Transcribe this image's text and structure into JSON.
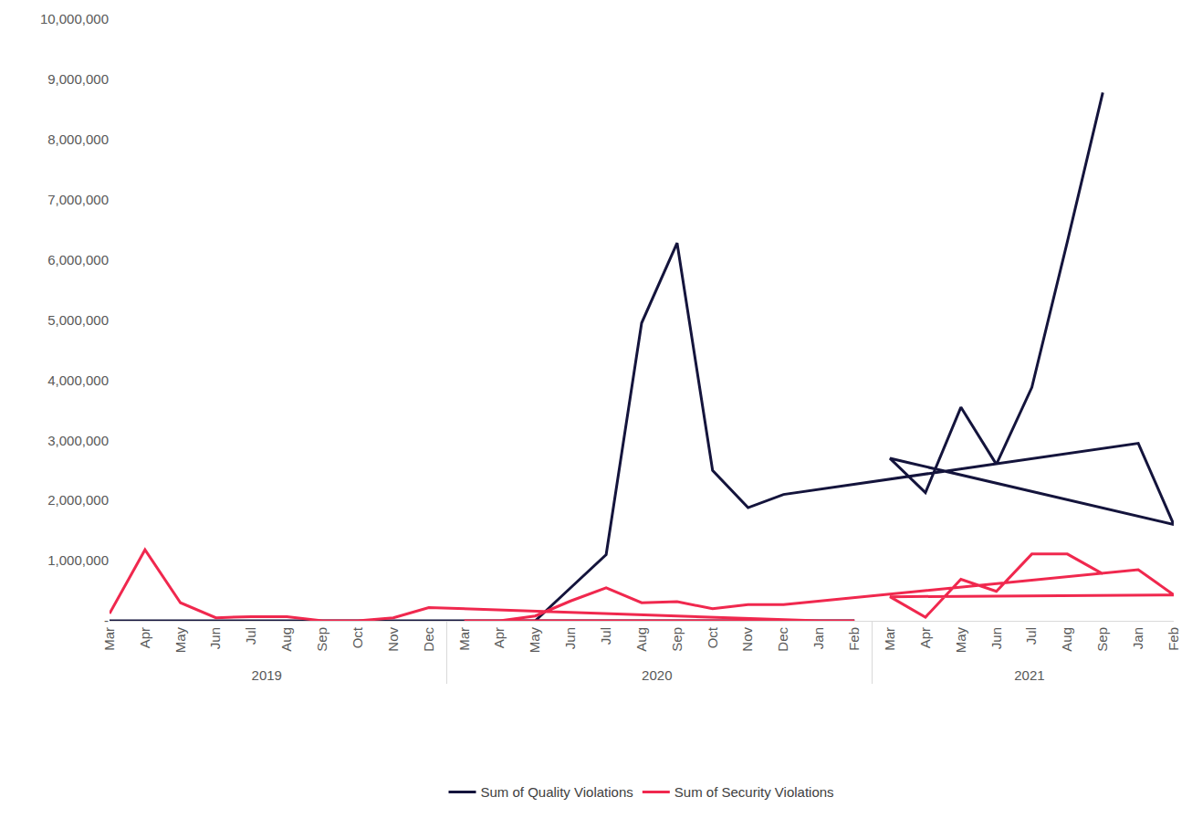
{
  "chart_data": {
    "type": "line",
    "categories": [
      [
        "2019",
        "Mar"
      ],
      [
        "2019",
        "Apr"
      ],
      [
        "2019",
        "May"
      ],
      [
        "2019",
        "Jun"
      ],
      [
        "2019",
        "Jul"
      ],
      [
        "2019",
        "Aug"
      ],
      [
        "2019",
        "Sep"
      ],
      [
        "2019",
        "Oct"
      ],
      [
        "2019",
        "Nov"
      ],
      [
        "2019",
        "Dec"
      ],
      [
        "2020",
        "Jan"
      ],
      [
        "2020",
        "Feb"
      ],
      [
        "2020",
        "Mar"
      ],
      [
        "2020",
        "Apr"
      ],
      [
        "2020",
        "May"
      ],
      [
        "2020",
        "Jun"
      ],
      [
        "2020",
        "Jul"
      ],
      [
        "2020",
        "Aug"
      ],
      [
        "2020",
        "Sep"
      ],
      [
        "2020",
        "Oct"
      ],
      [
        "2020",
        "Nov"
      ],
      [
        "2020",
        "Dec"
      ],
      [
        "2021",
        "Jan"
      ],
      [
        "2021",
        "Feb"
      ],
      [
        "2021",
        "Mar"
      ],
      [
        "2021",
        "Apr"
      ],
      [
        "2021",
        "May"
      ],
      [
        "2021",
        "Jun"
      ],
      [
        "2021",
        "Jul"
      ],
      [
        "2021",
        "Aug"
      ],
      [
        "2021",
        "Sep"
      ]
    ],
    "series": [
      {
        "name": "Sum of Quality Violations",
        "color": "#14143c",
        "values": [
          0,
          0,
          0,
          0,
          0,
          0,
          0,
          0,
          0,
          0,
          0,
          0,
          0,
          0,
          0,
          550000,
          1100000,
          4950000,
          6280000,
          2500000,
          1880000,
          2100000,
          2950000,
          1600000,
          2700000,
          2130000,
          3550000,
          2600000,
          3880000,
          6300000,
          8780000
        ]
      },
      {
        "name": "Sum of Security Violations",
        "color": "#f0284e",
        "values": [
          120000,
          1180000,
          300000,
          50000,
          70000,
          70000,
          0,
          0,
          50000,
          220000,
          0,
          0,
          0,
          0,
          80000,
          330000,
          550000,
          300000,
          320000,
          200000,
          270000,
          270000,
          850000,
          430000,
          400000,
          60000,
          690000,
          490000,
          1110000,
          1110000,
          780000
        ]
      }
    ],
    "ylim": [
      0,
      10000000
    ],
    "yticks": [
      {
        "value": 0,
        "label": "-"
      },
      {
        "value": 1000000,
        "label": "1,000,000"
      },
      {
        "value": 2000000,
        "label": "2,000,000"
      },
      {
        "value": 3000000,
        "label": "3,000,000"
      },
      {
        "value": 4000000,
        "label": "4,000,000"
      },
      {
        "value": 5000000,
        "label": "5,000,000"
      },
      {
        "value": 6000000,
        "label": "6,000,000"
      },
      {
        "value": 7000000,
        "label": "7,000,000"
      },
      {
        "value": 8000000,
        "label": "8,000,000"
      },
      {
        "value": 9000000,
        "label": "9,000,000"
      },
      {
        "value": 10000000,
        "label": "10,000,000"
      }
    ],
    "grid": false,
    "legend": "bottom"
  }
}
